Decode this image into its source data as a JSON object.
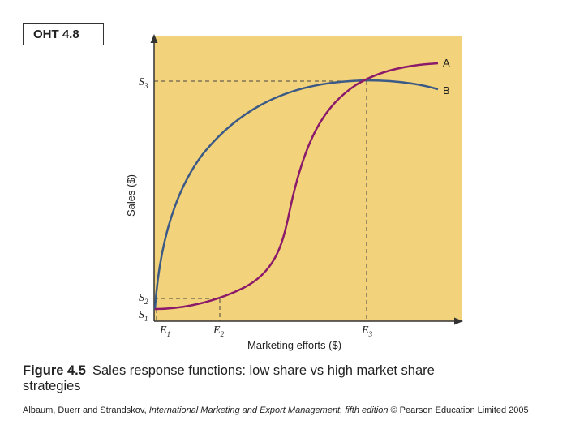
{
  "badge": "OHT 4.8",
  "diagram": {
    "y_axis_label": "Sales ($)",
    "x_axis_label": "Marketing efforts ($)",
    "y_marks": [
      {
        "base": "S",
        "sub": "3"
      },
      {
        "base": "S",
        "sub": "2"
      },
      {
        "base": "S",
        "sub": "1"
      }
    ],
    "x_marks": [
      {
        "base": "E",
        "sub": "1"
      },
      {
        "base": "E",
        "sub": "2"
      },
      {
        "base": "E",
        "sub": "3"
      }
    ],
    "curves": [
      {
        "name": "A",
        "color": "#8b1a6b"
      },
      {
        "name": "B",
        "color": "#3c5a86"
      }
    ],
    "background_color": "#f2d27a"
  },
  "caption": {
    "figure_label": "Figure 4.5",
    "text": "Sales response functions: low share vs high market share strategies"
  },
  "credit": {
    "authors": "Albaum, Duerr and Strandskov, ",
    "book": "International Marketing and Export Management, fifth edition",
    "rest": " © Pearson Education Limited 2005"
  }
}
